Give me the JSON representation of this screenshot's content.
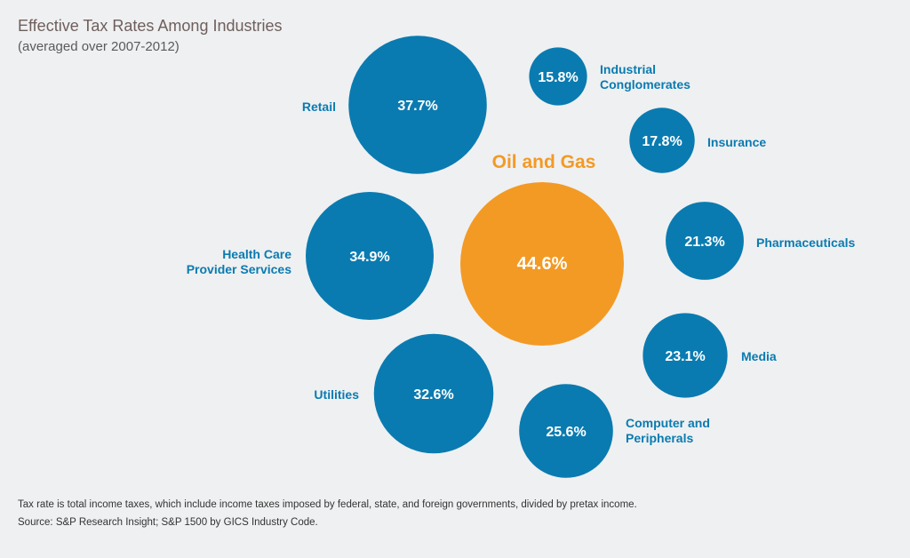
{
  "chart_data": {
    "type": "bubble",
    "title": "Effective Tax Rates Among Industries",
    "subtitle": "(averaged over 2007-2012)",
    "unit": "%",
    "highlight_color": "#f39a24",
    "base_color": "#0a7bb0",
    "series": [
      {
        "name": "Retail",
        "value": 37.7,
        "label": "37.7%",
        "highlight": false
      },
      {
        "name": "Industrial Conglomerates",
        "value": 15.8,
        "label": "15.8%",
        "highlight": false
      },
      {
        "name": "Insurance",
        "value": 17.8,
        "label": "17.8%",
        "highlight": false
      },
      {
        "name": "Oil and Gas",
        "value": 44.6,
        "label": "44.6%",
        "highlight": true
      },
      {
        "name": "Health Care Provider Services",
        "value": 34.9,
        "label": "34.9%",
        "highlight": false
      },
      {
        "name": "Pharmaceuticals",
        "value": 21.3,
        "label": "21.3%",
        "highlight": false
      },
      {
        "name": "Media",
        "value": 23.1,
        "label": "23.1%",
        "highlight": false
      },
      {
        "name": "Utilities",
        "value": 32.6,
        "label": "32.6%",
        "highlight": false
      },
      {
        "name": "Computer and Peripherals",
        "value": 25.6,
        "label": "25.6%",
        "highlight": false
      }
    ]
  },
  "footnotes": {
    "definition": "Tax rate is total income taxes, which include income taxes imposed by federal, state, and foreign governments, divided by pretax income.",
    "source": "Source: S&P Research Insight; S&P 1500 by GICS Industry Code."
  }
}
